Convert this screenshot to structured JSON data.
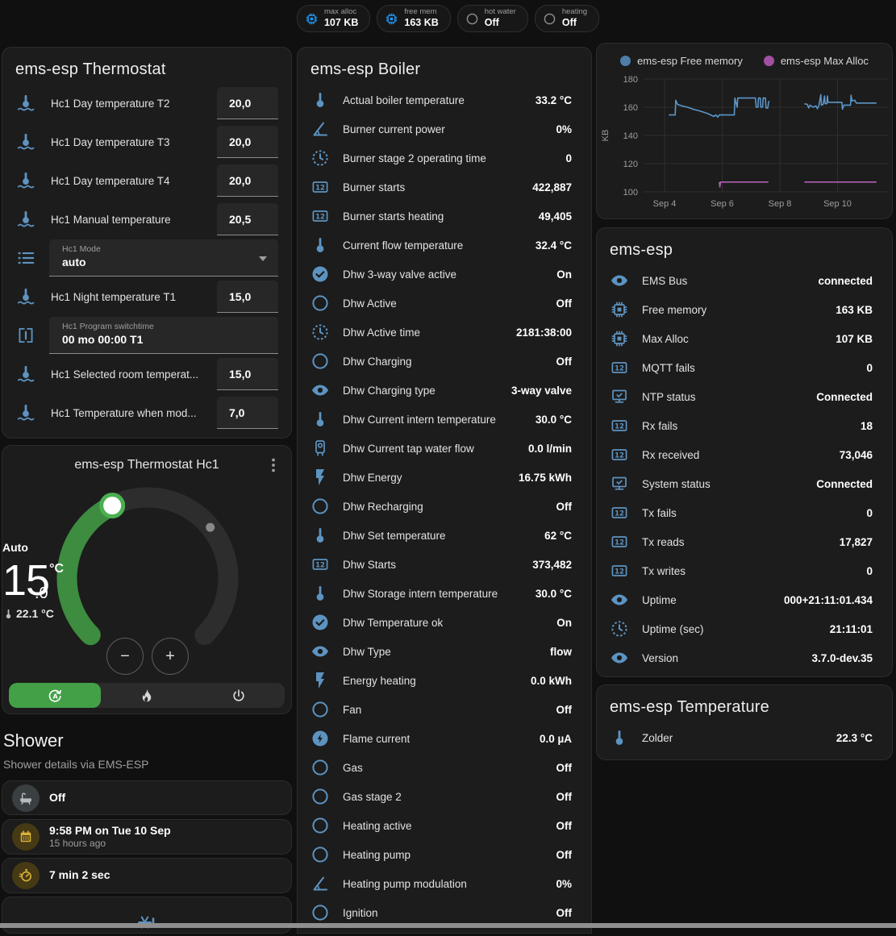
{
  "colors": {
    "icon_blue": "#5d93c1",
    "chip_blue": "#2196f3",
    "gray_icon": "#9e9e9e",
    "amber": "#d9b13b",
    "amber_bg": "#453a14",
    "gray_badge_icon": "#b5bcc1",
    "gray_badge_bg": "#3a3f42",
    "green": "#43a047",
    "card_bg": "#1c1c1c"
  },
  "header_chips": [
    {
      "label": "max alloc",
      "value": "107 KB",
      "icon": "memory-chip",
      "icon_color": "#2196f3"
    },
    {
      "label": "free mem",
      "value": "163 KB",
      "icon": "memory-chip",
      "icon_color": "#2196f3"
    },
    {
      "label": "hot water",
      "value": "Off",
      "icon": "circle-outline",
      "icon_color": "#8f8f8f"
    },
    {
      "label": "heating",
      "value": "Off",
      "icon": "circle-outline",
      "icon_color": "#8f8f8f"
    }
  ],
  "thermostat_card": {
    "title": "ems-esp Thermostat",
    "rows": [
      {
        "type": "number",
        "icon": "thermometer-water",
        "label": "Hc1 Day temperature T2",
        "value": "20,0"
      },
      {
        "type": "number",
        "icon": "thermometer-water",
        "label": "Hc1 Day temperature T3",
        "value": "20,0"
      },
      {
        "type": "number",
        "icon": "thermometer-water",
        "label": "Hc1 Day temperature T4",
        "value": "20,0"
      },
      {
        "type": "number",
        "icon": "thermometer-water",
        "label": "Hc1 Manual temperature",
        "value": "20,5"
      },
      {
        "type": "select",
        "icon": "format-list",
        "label": "Hc1 Mode",
        "value": "auto"
      },
      {
        "type": "number",
        "icon": "thermometer-water",
        "label": "Hc1 Night temperature T1",
        "value": "15,0"
      },
      {
        "type": "text",
        "icon": "valve",
        "label": "Hc1 Program switchtime",
        "value": "00 mo 00:00 T1"
      },
      {
        "type": "number",
        "icon": "thermometer-water",
        "label": "Hc1 Selected room temperat...",
        "value": "15,0"
      },
      {
        "type": "number",
        "icon": "thermometer-water",
        "label": "Hc1 Temperature when mod...",
        "value": "7,0"
      }
    ]
  },
  "hc1_card": {
    "title": "ems-esp Thermostat Hc1",
    "mode_label": "Auto",
    "target_temp_int": "15",
    "target_temp_dec": ".0",
    "temp_unit": "°C",
    "current_temp": "22.1 °C",
    "minus_label": "−",
    "plus_label": "+",
    "modes": [
      {
        "icon": "thermostat-auto",
        "active": true
      },
      {
        "icon": "fire",
        "active": false
      },
      {
        "icon": "power",
        "active": false
      }
    ]
  },
  "shower": {
    "title": "Shower",
    "subtitle": "Shower details via EMS-ESP",
    "items": [
      {
        "icon": "bathtub",
        "style": "gray",
        "primary": "Off"
      },
      {
        "icon": "calendar",
        "style": "amber",
        "primary": "9:58 PM on Tue 10 Sep",
        "secondary": "15 hours ago"
      },
      {
        "icon": "timer",
        "style": "amber",
        "primary": "7 min 2 sec"
      },
      {
        "icon": "snowflake-alert",
        "style": "plain-blue",
        "centered": true
      }
    ]
  },
  "boiler_card": {
    "title": "ems-esp Boiler",
    "rows": [
      {
        "icon": "thermometer",
        "label": "Actual boiler temperature",
        "value": "33.2 °C"
      },
      {
        "icon": "angle-acute",
        "label": "Burner current power",
        "value": "0%"
      },
      {
        "icon": "progress-clock",
        "label": "Burner stage 2 operating time",
        "value": "0"
      },
      {
        "icon": "counter",
        "label": "Burner starts",
        "value": "422,887"
      },
      {
        "icon": "counter",
        "label": "Burner starts heating",
        "value": "49,405"
      },
      {
        "icon": "thermometer",
        "label": "Current flow temperature",
        "value": "32.4 °C"
      },
      {
        "icon": "check-circle",
        "label": "Dhw 3-way valve active",
        "value": "On"
      },
      {
        "icon": "circle-outline",
        "label": "Dhw Active",
        "value": "Off"
      },
      {
        "icon": "progress-clock",
        "label": "Dhw Active time",
        "value": "2181:38:00"
      },
      {
        "icon": "circle-outline",
        "label": "Dhw Charging",
        "value": "Off"
      },
      {
        "icon": "eye",
        "label": "Dhw Charging type",
        "value": "3-way valve"
      },
      {
        "icon": "thermometer",
        "label": "Dhw Current intern temperature",
        "value": "30.0 °C"
      },
      {
        "icon": "water-boiler",
        "label": "Dhw Current tap water flow",
        "value": "0.0 l/min"
      },
      {
        "icon": "flash",
        "label": "Dhw Energy",
        "value": "16.75 kWh"
      },
      {
        "icon": "circle-outline",
        "label": "Dhw Recharging",
        "value": "Off"
      },
      {
        "icon": "thermometer",
        "label": "Dhw Set temperature",
        "value": "62 °C"
      },
      {
        "icon": "counter",
        "label": "Dhw Starts",
        "value": "373,482"
      },
      {
        "icon": "thermometer",
        "label": "Dhw Storage intern temperature",
        "value": "30.0 °C"
      },
      {
        "icon": "check-circle",
        "label": "Dhw Temperature ok",
        "value": "On"
      },
      {
        "icon": "eye",
        "label": "Dhw Type",
        "value": "flow"
      },
      {
        "icon": "flash",
        "label": "Energy heating",
        "value": "0.0 kWh"
      },
      {
        "icon": "circle-outline",
        "label": "Fan",
        "value": "Off"
      },
      {
        "icon": "flash-circle",
        "label": "Flame current",
        "value": "0.0 µA"
      },
      {
        "icon": "circle-outline",
        "label": "Gas",
        "value": "Off"
      },
      {
        "icon": "circle-outline",
        "label": "Gas stage 2",
        "value": "Off"
      },
      {
        "icon": "circle-outline",
        "label": "Heating active",
        "value": "Off"
      },
      {
        "icon": "circle-outline",
        "label": "Heating pump",
        "value": "Off"
      },
      {
        "icon": "angle-acute",
        "label": "Heating pump modulation",
        "value": "0%"
      },
      {
        "icon": "circle-outline",
        "label": "Ignition",
        "value": "Off"
      }
    ]
  },
  "emsesp_card": {
    "title": "ems-esp",
    "rows": [
      {
        "icon": "eye",
        "label": "EMS Bus",
        "value": "connected"
      },
      {
        "icon": "memory-chip",
        "label": "Free memory",
        "value": "163 KB"
      },
      {
        "icon": "memory-chip",
        "label": "Max Alloc",
        "value": "107 KB"
      },
      {
        "icon": "counter",
        "label": "MQTT fails",
        "value": "0"
      },
      {
        "icon": "network-check",
        "label": "NTP status",
        "value": "Connected"
      },
      {
        "icon": "counter",
        "label": "Rx fails",
        "value": "18"
      },
      {
        "icon": "counter",
        "label": "Rx received",
        "value": "73,046"
      },
      {
        "icon": "network-check",
        "label": "System status",
        "value": "Connected"
      },
      {
        "icon": "counter",
        "label": "Tx fails",
        "value": "0"
      },
      {
        "icon": "counter",
        "label": "Tx reads",
        "value": "17,827"
      },
      {
        "icon": "counter",
        "label": "Tx writes",
        "value": "0"
      },
      {
        "icon": "eye",
        "label": "Uptime",
        "value": "000+21:11:01.434"
      },
      {
        "icon": "progress-clock",
        "label": "Uptime (sec)",
        "value": "21:11:01"
      },
      {
        "icon": "eye",
        "label": "Version",
        "value": "3.7.0-dev.35"
      }
    ]
  },
  "temperature_card": {
    "title": "ems-esp Temperature",
    "rows": [
      {
        "icon": "thermometer",
        "label": "Zolder",
        "value": "22.3 °C"
      }
    ]
  },
  "chart_data": {
    "type": "line",
    "title": "",
    "xlabel": "",
    "ylabel": "KB",
    "grid": true,
    "legend_position": "top",
    "xlim": [
      3.0,
      11.8
    ],
    "ylim": [
      95,
      185
    ],
    "yticks": [
      100,
      120,
      140,
      160,
      180
    ],
    "xticks": [
      {
        "day": 4,
        "label": "Sep 4"
      },
      {
        "day": 6,
        "label": "Sep 6"
      },
      {
        "day": 8,
        "label": "Sep 8"
      },
      {
        "day": 10,
        "label": "Sep 10"
      }
    ],
    "series": [
      {
        "name": "ems-esp Free memory",
        "color": "#5b96c8",
        "dot_color": "#4d7ea8",
        "segments": [
          [
            [
              4.15,
              154.5
            ],
            [
              4.37,
              154.5
            ],
            [
              4.39,
              165
            ],
            [
              4.45,
              162
            ],
            [
              4.6,
              161
            ],
            [
              4.8,
              160
            ],
            [
              5.0,
              158.5
            ],
            [
              5.2,
              157.5
            ],
            [
              5.35,
              156.5
            ],
            [
              5.5,
              155.5
            ],
            [
              5.6,
              154.5
            ],
            [
              5.7,
              153.5
            ],
            [
              5.78,
              154.5
            ],
            [
              5.84,
              153
            ],
            [
              5.9,
              154.5
            ],
            [
              6.42,
              154.5
            ],
            [
              6.44,
              166.5
            ],
            [
              6.52,
              160
            ],
            [
              6.54,
              166.5
            ],
            [
              7.15,
              166.5
            ],
            [
              7.18,
              160
            ],
            [
              7.24,
              160
            ],
            [
              7.26,
              166.5
            ],
            [
              7.32,
              166.5
            ],
            [
              7.34,
              160
            ],
            [
              7.4,
              160
            ],
            [
              7.42,
              166.5
            ],
            [
              7.5,
              166.5
            ],
            [
              7.52,
              159.5
            ],
            [
              7.58,
              159.5
            ],
            [
              7.62,
              164.5
            ]
          ],
          [
            [
              8.85,
              162.5
            ],
            [
              8.95,
              162
            ],
            [
              9.0,
              159.5
            ],
            [
              9.05,
              161.5
            ],
            [
              9.15,
              160
            ],
            [
              9.25,
              161
            ],
            [
              9.3,
              159
            ],
            [
              9.35,
              161
            ],
            [
              9.42,
              169
            ],
            [
              9.44,
              161.5
            ],
            [
              9.5,
              162
            ],
            [
              9.55,
              168
            ],
            [
              9.57,
              162.5
            ],
            [
              9.63,
              162.5
            ],
            [
              9.65,
              168
            ],
            [
              9.67,
              163.5
            ],
            [
              10.05,
              163.5
            ],
            [
              10.15,
              163.5
            ],
            [
              10.17,
              158.5
            ],
            [
              10.22,
              161.5
            ],
            [
              10.45,
              161.5
            ],
            [
              10.47,
              168.5
            ],
            [
              10.5,
              164.5
            ],
            [
              10.6,
              165
            ],
            [
              10.65,
              163
            ],
            [
              11.0,
              163
            ],
            [
              11.35,
              163
            ]
          ]
        ]
      },
      {
        "name": "ems-esp Max Alloc",
        "color": "#b05fb2",
        "dot_color": "#a14fa3",
        "segments": [
          [
            [
              5.9,
              107
            ],
            [
              5.92,
              103.5
            ],
            [
              5.94,
              107
            ],
            [
              7.6,
              107
            ]
          ],
          [
            [
              8.85,
              107
            ],
            [
              11.35,
              107
            ]
          ]
        ]
      }
    ]
  }
}
